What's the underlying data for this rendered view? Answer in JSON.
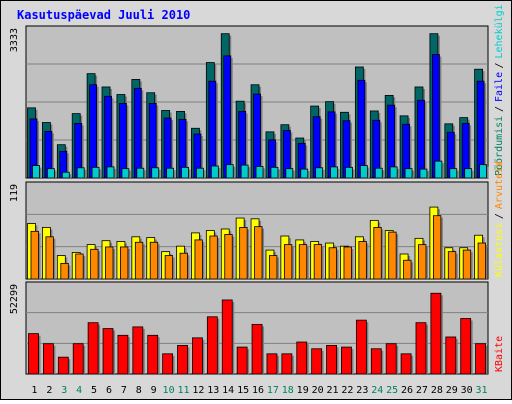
{
  "chart_data": {
    "type": "bar",
    "title": "Kasutuspäevad Juuli 2010",
    "categories": [
      "1",
      "2",
      "3",
      "4",
      "5",
      "6",
      "7",
      "8",
      "9",
      "10",
      "11",
      "12",
      "13",
      "14",
      "15",
      "16",
      "17",
      "18",
      "19",
      "20",
      "21",
      "22",
      "23",
      "24",
      "25",
      "26",
      "27",
      "28",
      "29",
      "30",
      "31"
    ],
    "weekend_days": [
      "3",
      "4",
      "10",
      "11",
      "17",
      "18",
      "24",
      "25",
      "31"
    ],
    "colors": {
      "weekday_label": "#000000",
      "weekend_label": "#008060",
      "pageviews": "#006666",
      "hits": "#0000ff",
      "files": "#00cccc",
      "visits": "#ffff00",
      "sites": "#ff8800",
      "kbytes": "#ff0000",
      "panel": "#c0c0c0",
      "background": "#d8d8d8",
      "title": "#0000ff"
    },
    "panels": [
      {
        "id": "traffic",
        "max_label": "3333",
        "ymax": 3333,
        "legend": [
          {
            "text": "Pöördumisi",
            "color": "#008060"
          },
          {
            "text": "Faile",
            "color": "#0000ff"
          },
          {
            "text": "Lehekülgi",
            "color": "#00cccc"
          }
        ],
        "series": [
          {
            "key": "pageviews",
            "values": [
              1580,
              1250,
              750,
              1450,
              2350,
              2050,
              1880,
              2220,
              1920,
              1520,
              1500,
              1120,
              2600,
              3250,
              1730,
              2100,
              1040,
              1200,
              900,
              1620,
              1720,
              1480,
              2500,
              1510,
              1860,
              1400,
              2050,
              3250,
              1220,
              1360,
              2450
            ]
          },
          {
            "key": "hits",
            "values": [
              1330,
              1050,
              600,
              1230,
              2100,
              1840,
              1680,
              2020,
              1680,
              1350,
              1320,
              990,
              2180,
              2750,
              1500,
              1890,
              860,
              1070,
              780,
              1380,
              1490,
              1290,
              2200,
              1300,
              1640,
              1210,
              1750,
              2780,
              1030,
              1230,
              2180
            ]
          },
          {
            "key": "files",
            "values": [
              280,
              210,
              130,
              230,
              240,
              250,
              210,
              220,
              230,
              220,
              240,
              220,
              270,
              300,
              290,
              260,
              240,
              210,
              200,
              230,
              250,
              240,
              280,
              220,
              250,
              210,
              200,
              380,
              210,
              210,
              300
            ]
          }
        ]
      },
      {
        "id": "visits",
        "max_label": "119",
        "ymax": 119,
        "legend": [
          {
            "text": "Külastusi",
            "color": "#ffff00"
          },
          {
            "text": "Arvuteid",
            "color": "#ff8800"
          }
        ],
        "series": [
          {
            "key": "visits",
            "values": [
              71,
              66,
              30,
              34,
              44,
              49,
              48,
              54,
              53,
              35,
              42,
              59,
              62,
              64,
              78,
              77,
              37,
              55,
              50,
              48,
              46,
              42,
              54,
              75,
              62,
              32,
              52,
              92,
              40,
              40,
              56
            ]
          },
          {
            "key": "sites",
            "values": [
              61,
              54,
              20,
              32,
              38,
              41,
              41,
              47,
              47,
              30,
              33,
              50,
              55,
              57,
              66,
              67,
              30,
              44,
              44,
              44,
              40,
              41,
              48,
              66,
              60,
              24,
              44,
              81,
              35,
              37,
              46
            ]
          }
        ]
      },
      {
        "id": "kbytes",
        "max_label": "52299",
        "ymax": 52299,
        "legend": [
          {
            "text": "KBaite",
            "color": "#ff0000"
          }
        ],
        "series": [
          {
            "key": "kbytes",
            "values": [
              24000,
              18000,
              10000,
              18000,
              30500,
              27000,
              23000,
              28000,
              23000,
              12000,
              17000,
              21500,
              34000,
              44000,
              16000,
              29500,
              12000,
              12000,
              19000,
              15000,
              17000,
              16000,
              32000,
              15000,
              18000,
              12000,
              30500,
              48000,
              22000,
              33000,
              18000
            ]
          }
        ]
      }
    ]
  }
}
